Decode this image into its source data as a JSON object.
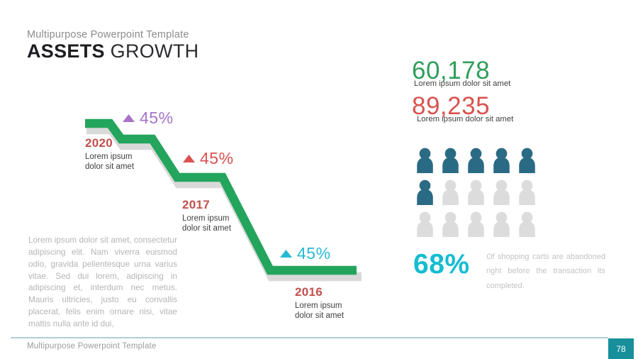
{
  "header": {
    "kicker": "Multipurpose Powerpoint Template",
    "title_bold": "ASSETS",
    "title_rest": "GROWTH"
  },
  "chart_data": {
    "type": "line",
    "style": "descending-staircase-ribbon",
    "title": "Assets Growth",
    "ribbon_color": "#23a55d",
    "shadow_color": "#d9d9d9",
    "year_label_color": "#c0504d",
    "steps": [
      {
        "year": "2020",
        "caption_line1": "Lorem ipsum",
        "caption_line2": "dolor sit amet",
        "value_label": "45%",
        "marker": "triangle-up",
        "marker_color": "#a873c8",
        "level": 3
      },
      {
        "year": "2017",
        "caption_line1": "Lorem ipsum",
        "caption_line2": "dolor sit amet",
        "value_label": "45%",
        "marker": "triangle-up",
        "marker_color": "#d9524e",
        "level": 2
      },
      {
        "year": "2016",
        "caption_line1": "Lorem ipsum",
        "caption_line2": "dolor sit amet",
        "value_label": "45%",
        "marker": "triangle-up",
        "marker_color": "#27b9d4",
        "level": 1
      }
    ]
  },
  "paragraph": "Lorem ipsum dolor sit amet, consectetur adipiscing elit. Nam viverra euismod odio, gravida pellentesque urna varius vitae. Sed dui lorem, adipiscing in adipiscing et, interdum nec metus. Mauris ultricies, justo eu convallis placerat, felis enim ornare nisi, vitae mattis nulla ante id dui,",
  "stats": {
    "stat_green": {
      "value": "60,178",
      "caption": "Lorem ipsum dolor sit amet",
      "color": "#2f9e5b"
    },
    "stat_red": {
      "value": "89,235",
      "caption": "Lorem ipsum dolor sit amet",
      "color": "#d9534f"
    },
    "people": {
      "total": 15,
      "filled": 6,
      "per_row": 5,
      "filled_color": "#2b6a84",
      "empty_color": "#dcdcdc"
    },
    "percent_stat": {
      "value": "68%",
      "color": "#13bdd2",
      "caption": "Of shopping carts are abandoned right before the transaction its completed."
    }
  },
  "footer": {
    "text": "Multipurpose Powerpoint Template",
    "page_number": "78",
    "box_color": "#17909c",
    "line_color": "#aecfd8"
  }
}
